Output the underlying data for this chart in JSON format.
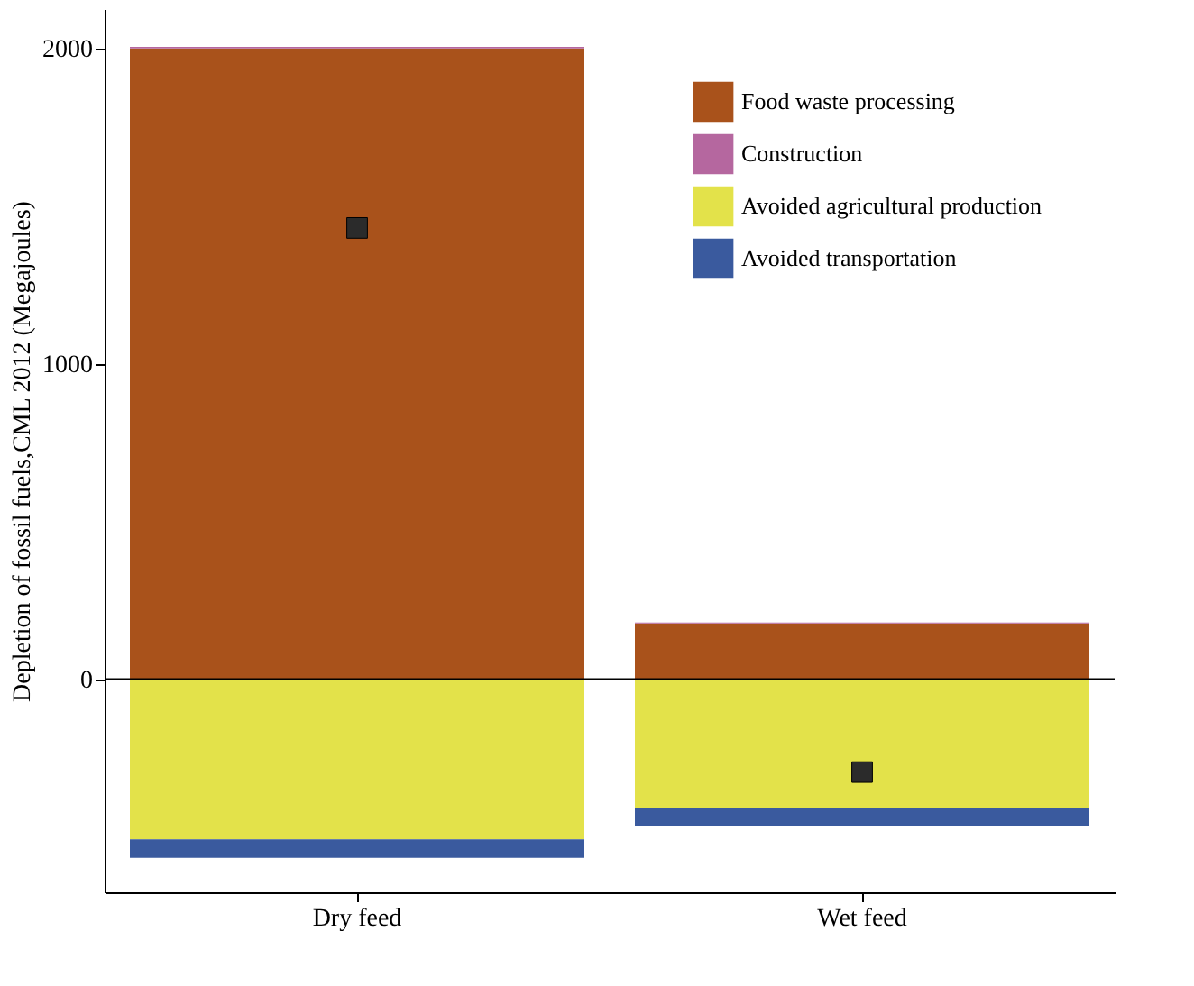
{
  "chart_data": {
    "type": "bar",
    "stacked": true,
    "ylabel": "Depletion of fossil fuels,CML 2012 (Megajoules)",
    "categories": [
      "Dry feed",
      "Wet feed"
    ],
    "series": [
      {
        "name": "Food waste processing",
        "color": "#a9521b",
        "values": [
          2000,
          177
        ]
      },
      {
        "name": "Construction",
        "color": "#b5679f",
        "values": [
          5,
          3
        ]
      },
      {
        "name": "Avoided agricultural production",
        "color": "#e3e24a",
        "values": [
          -507,
          -407
        ]
      },
      {
        "name": "Avoided transportation",
        "color": "#3a5a9e",
        "values": [
          -59,
          -57
        ]
      },
      {
        "type": "scatter",
        "color": "#2b2b2b",
        "marker": "square",
        "values": [
          1431,
          -294
        ]
      }
    ],
    "ylim": [
      -675,
      2125
    ],
    "yticks": [
      0,
      1000,
      2000
    ],
    "grid": false,
    "ref_lines": [
      {
        "axis": "y",
        "value": 0,
        "color": "#000000"
      }
    ],
    "legend": "top right"
  }
}
